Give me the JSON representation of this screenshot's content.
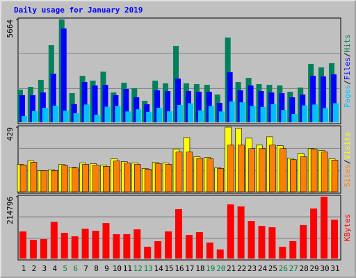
{
  "chart_data": {
    "type": "bar",
    "title": "Daily usage for January 2019",
    "label_separator": "/",
    "categories": [
      "1",
      "2",
      "3",
      "4",
      "5",
      "6",
      "7",
      "8",
      "9",
      "10",
      "11",
      "12",
      "13",
      "14",
      "15",
      "16",
      "17",
      "18",
      "19",
      "20",
      "21",
      "22",
      "23",
      "24",
      "25",
      "26",
      "27",
      "28",
      "29",
      "30",
      "31"
    ],
    "category_colors": [
      "#000000",
      "#000000",
      "#000000",
      "#000000",
      "#008040",
      "#008040",
      "#000000",
      "#000000",
      "#000000",
      "#000000",
      "#000000",
      "#008040",
      "#008040",
      "#000000",
      "#000000",
      "#000000",
      "#000000",
      "#000000",
      "#008040",
      "#008040",
      "#000000",
      "#000000",
      "#000000",
      "#000000",
      "#000000",
      "#008040",
      "#008040",
      "#000000",
      "#000000",
      "#000000",
      "#000000"
    ],
    "panels": [
      {
        "ylim": [
          0,
          5664
        ],
        "yticks": [
          5664
        ],
        "series": [
          {
            "name": "Hits",
            "color": "#00805c",
            "values": [
              1799,
              1952,
              2334,
              4248,
              5664,
              1607,
              2564,
              2296,
              2794,
              1646,
              2181,
              1875,
              1186,
              2296,
              2143,
              4210,
              2143,
              2105,
              2067,
              1531,
              4669,
              2220,
              2449,
              2105,
              2067,
              2028,
              1684,
              1914,
              3215,
              3023,
              3253
            ]
          },
          {
            "name": "Files",
            "color": "#0000ff",
            "values": [
              1493,
              1493,
              1646,
              2679,
              5167,
              1003,
              2219,
              2028,
              2066,
              1493,
              1837,
              1378,
              995,
              1760,
              1722,
              2411,
              1722,
              1683,
              1683,
              1071,
              2756,
              1760,
              2028,
              1722,
              1645,
              1607,
              1378,
              1530,
              2564,
              2526,
              2640
            ]
          },
          {
            "name": "Pages",
            "color": "#00c0ff",
            "values": [
              340,
              620,
              800,
              920,
              640,
              500,
              980,
              420,
              860,
              900,
              600,
              720,
              580,
              800,
              610,
              960,
              1050,
              660,
              900,
              600,
              1150,
              1100,
              900,
              850,
              1000,
              680,
              460,
              930,
              980,
              780,
              1050
            ]
          }
        ]
      },
      {
        "ylim": [
          0,
          429
        ],
        "yticks": [
          429
        ],
        "series": [
          {
            "name": "Visits",
            "color": "#ffff00",
            "values": [
              182,
              205,
              141,
              146,
              182,
              164,
              191,
              187,
              178,
              219,
              200,
              191,
              155,
              196,
              191,
              283,
              360,
              233,
              228,
              160,
              429,
              420,
              356,
              310,
              365,
              306,
              223,
              255,
              287,
              274,
              219
            ]
          },
          {
            "name": "Sites",
            "color": "#ff8000",
            "values": [
              178,
              196,
              141,
              141,
              173,
              160,
              182,
              178,
              169,
              205,
              191,
              182,
              150,
              187,
              182,
              264,
              264,
              223,
              219,
              155,
              310,
              310,
              287,
              287,
              310,
              287,
              214,
              233,
              283,
              264,
              210
            ]
          }
        ]
      },
      {
        "ylim": [
          0,
          214796
        ],
        "yticks": [
          214796
        ],
        "series": [
          {
            "name": "KBytes",
            "color": "#ff0000",
            "values": [
              94100,
              65000,
              67500,
              127800,
              89300,
              77200,
              103800,
              96500,
              123000,
              84500,
              84500,
              101400,
              41000,
              60300,
              94100,
              171300,
              82000,
              91700,
              55500,
              31400,
              188000,
              180900,
              130200,
              113300,
              108600,
              41000,
              60300,
              115800,
              173700,
              214796,
              135000
            ]
          }
        ]
      }
    ]
  }
}
